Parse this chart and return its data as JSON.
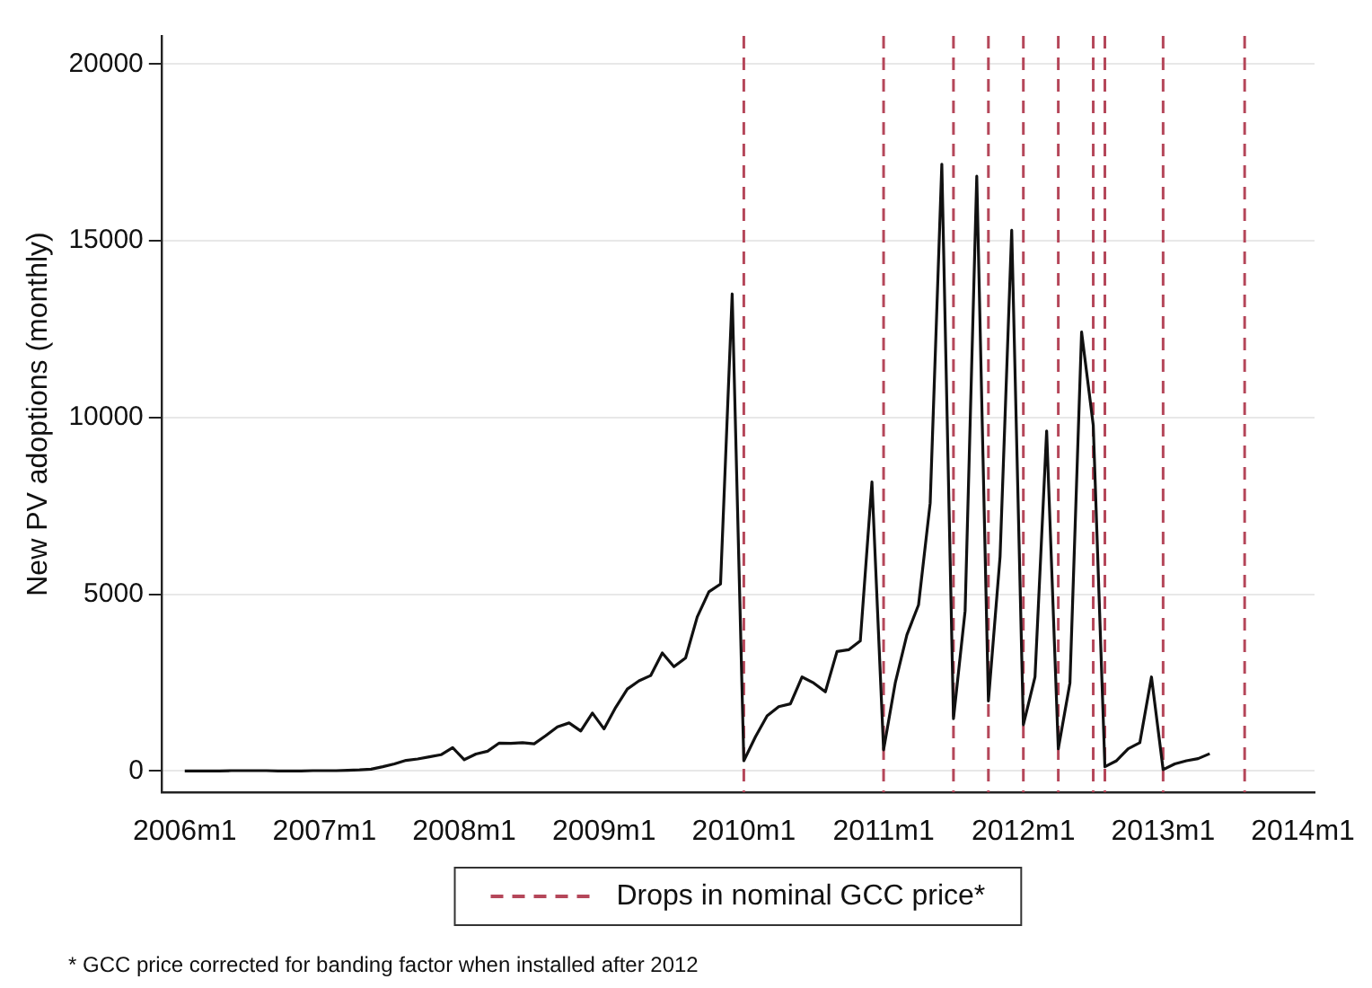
{
  "chart_data": {
    "type": "line",
    "ylabel": "New PV adoptions (monthly)",
    "x": [
      "2006-01",
      "2006-02",
      "2006-03",
      "2006-04",
      "2006-05",
      "2006-06",
      "2006-07",
      "2006-08",
      "2006-09",
      "2006-10",
      "2006-11",
      "2006-12",
      "2007-01",
      "2007-02",
      "2007-03",
      "2007-04",
      "2007-05",
      "2007-06",
      "2007-07",
      "2007-08",
      "2007-09",
      "2007-10",
      "2007-11",
      "2007-12",
      "2008-01",
      "2008-02",
      "2008-03",
      "2008-04",
      "2008-05",
      "2008-06",
      "2008-07",
      "2008-08",
      "2008-09",
      "2008-10",
      "2008-11",
      "2008-12",
      "2009-01",
      "2009-02",
      "2009-03",
      "2009-04",
      "2009-05",
      "2009-06",
      "2009-07",
      "2009-08",
      "2009-09",
      "2009-10",
      "2009-11",
      "2009-12",
      "2010-01",
      "2010-02",
      "2010-03",
      "2010-04",
      "2010-05",
      "2010-06",
      "2010-07",
      "2010-08",
      "2010-09",
      "2010-10",
      "2010-11",
      "2010-12",
      "2011-01",
      "2011-02",
      "2011-03",
      "2011-04",
      "2011-05",
      "2011-06",
      "2011-07",
      "2011-08",
      "2011-09",
      "2011-10",
      "2011-11",
      "2011-12",
      "2012-01",
      "2012-02",
      "2012-03",
      "2012-04",
      "2012-05",
      "2012-06",
      "2012-07",
      "2012-08",
      "2012-09",
      "2012-10",
      "2012-11",
      "2012-12",
      "2013-01",
      "2013-02",
      "2013-03",
      "2013-04",
      "2013-05"
    ],
    "series": [
      {
        "color": "#111111",
        "values": [
          0,
          0,
          0,
          0,
          10,
          10,
          10,
          10,
          0,
          0,
          0,
          10,
          10,
          10,
          20,
          30,
          50,
          120,
          200,
          300,
          340,
          400,
          460,
          660,
          320,
          480,
          560,
          790,
          780,
          800,
          770,
          1000,
          1250,
          1360,
          1130,
          1640,
          1190,
          1800,
          2320,
          2550,
          2700,
          3340,
          2950,
          3200,
          4360,
          5070,
          5290,
          13500,
          290,
          970,
          1560,
          1820,
          1900,
          2660,
          2490,
          2240,
          3380,
          3430,
          3680,
          8180,
          600,
          2490,
          3850,
          4700,
          7580,
          17170,
          1480,
          4530,
          16830,
          1980,
          6060,
          15300,
          1310,
          2660,
          9620,
          630,
          2490,
          12420,
          9790,
          120,
          290,
          630,
          800,
          2660,
          40,
          200,
          290,
          350,
          490
        ]
      }
    ],
    "xlim": [
      "2005-11",
      "2014-02"
    ],
    "xticks": [
      {
        "value": "2006-01",
        "label": "2006m1"
      },
      {
        "value": "2007-01",
        "label": "2007m1"
      },
      {
        "value": "2008-01",
        "label": "2008m1"
      },
      {
        "value": "2009-01",
        "label": "2009m1"
      },
      {
        "value": "2010-01",
        "label": "2010m1"
      },
      {
        "value": "2011-01",
        "label": "2011m1"
      },
      {
        "value": "2012-01",
        "label": "2012m1"
      },
      {
        "value": "2013-01",
        "label": "2013m1"
      },
      {
        "value": "2014-01",
        "label": "2014m1"
      }
    ],
    "ylim": [
      -600,
      20800
    ],
    "yticks": [
      0,
      5000,
      10000,
      15000,
      20000
    ],
    "grid": "y",
    "marker": "none",
    "line_style": "solid",
    "legend": "bottom",
    "ref_lines": [
      {
        "axis": "x",
        "value": "2010-01",
        "label": "Drops in nominal GCC price*",
        "color": "#b5475a",
        "line_style": "dashed"
      },
      {
        "axis": "x",
        "value": "2011-01",
        "color": "#b5475a",
        "line_style": "dashed"
      },
      {
        "axis": "x",
        "value": "2011-07",
        "color": "#b5475a",
        "line_style": "dashed"
      },
      {
        "axis": "x",
        "value": "2011-10",
        "color": "#b5475a",
        "line_style": "dashed"
      },
      {
        "axis": "x",
        "value": "2012-01",
        "color": "#b5475a",
        "line_style": "dashed"
      },
      {
        "axis": "x",
        "value": "2012-04",
        "color": "#b5475a",
        "line_style": "dashed"
      },
      {
        "axis": "x",
        "value": "2012-07",
        "color": "#b5475a",
        "line_style": "dashed"
      },
      {
        "axis": "x",
        "value": "2012-08",
        "color": "#b5475a",
        "line_style": "dashed"
      },
      {
        "axis": "x",
        "value": "2013-01",
        "color": "#b5475a",
        "line_style": "dashed"
      },
      {
        "axis": "x",
        "value": "2013-08",
        "color": "#b5475a",
        "line_style": "dashed"
      }
    ],
    "annotations": [
      "* GCC price corrected for banding factor when installed after 2012"
    ]
  }
}
